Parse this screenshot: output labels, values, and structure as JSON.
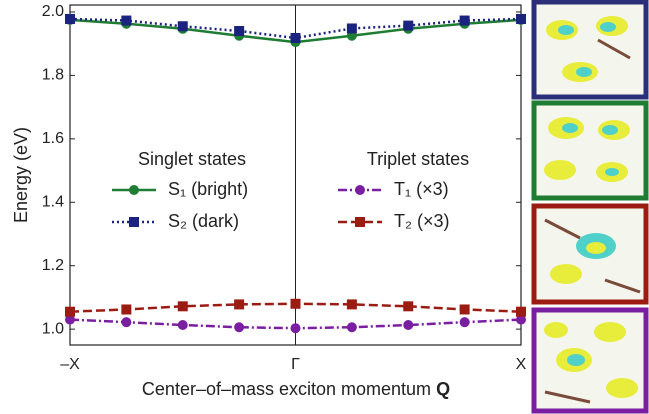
{
  "chart_data": {
    "type": "line",
    "y_label": "Energy (eV)",
    "x_label": "Center–of–mass exciton momentum",
    "x_label_symbol": "Q",
    "x": [
      -1,
      -0.75,
      -0.5,
      -0.25,
      0,
      0.25,
      0.5,
      0.75,
      1
    ],
    "xlim": [
      -1,
      1
    ],
    "xticks": [
      {
        "value": -1,
        "label": "–X"
      },
      {
        "value": 0,
        "label": "Γ"
      },
      {
        "value": 1,
        "label": "X"
      }
    ],
    "ylim": [
      0.95,
      2.022
    ],
    "yticks": [
      {
        "value": 1,
        "label": "1.0"
      },
      1.2,
      1.4,
      1.6,
      1.8,
      {
        "value": 2,
        "label": "2.0"
      }
    ],
    "legend_titles": [
      "Singlet states",
      "Triplet states"
    ],
    "series": [
      {
        "name": "S₁ (bright)",
        "color": "#1e7d32",
        "marker": "circle",
        "linestyle": "solid",
        "values": [
          1.975,
          1.963,
          1.947,
          1.925,
          1.905,
          1.925,
          1.947,
          1.963,
          1.975
        ]
      },
      {
        "name": "S₂ (dark)",
        "color": "#1a237e",
        "marker": "square",
        "linestyle": "dotted",
        "values": [
          1.978,
          1.973,
          1.955,
          1.94,
          1.918,
          1.948,
          1.957,
          1.973,
          1.978
        ]
      },
      {
        "name": "T₁ (×3)",
        "color": "#7b1fa2",
        "marker": "circle",
        "linestyle": "dashdot",
        "values": [
          1.03,
          1.022,
          1.013,
          1.006,
          1.003,
          1.006,
          1.013,
          1.022,
          1.03
        ]
      },
      {
        "name": "T₂ (×3)",
        "color": "#9b1c12",
        "marker": "square",
        "linestyle": "dashed",
        "values": [
          1.055,
          1.062,
          1.072,
          1.078,
          1.08,
          1.078,
          1.072,
          1.062,
          1.055
        ]
      }
    ]
  }
}
